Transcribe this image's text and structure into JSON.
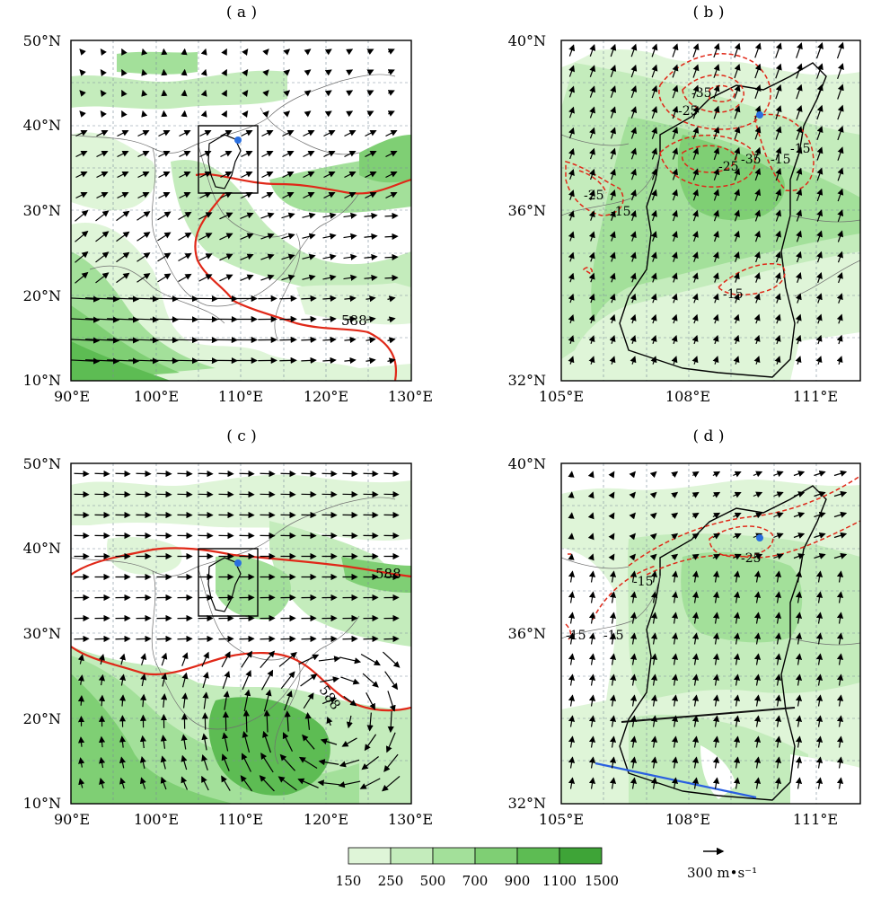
{
  "panels": [
    {
      "label": "( a )",
      "lat_labels": [
        "50°N",
        "40°N",
        "30°N",
        "20°N",
        "10°N"
      ],
      "lon_labels": [
        "90°E",
        "100°E",
        "110°E",
        "120°E",
        "130°E"
      ],
      "contour_label": "588"
    },
    {
      "label": "( b )",
      "lat_labels": [
        "40°N",
        "36°N",
        "32°N"
      ],
      "lon_labels": [
        "105°E",
        "108°E",
        "111°E"
      ],
      "contour_labels": [
        "-25",
        "-35",
        "-25",
        "-35",
        "-15",
        "-25",
        "-15",
        "-15",
        "-15"
      ]
    },
    {
      "label": "( c )",
      "lat_labels": [
        "50°N",
        "40°N",
        "30°N",
        "20°N",
        "10°N"
      ],
      "lon_labels": [
        "90°E",
        "100°E",
        "110°E",
        "120°E",
        "130°E"
      ],
      "contour_labels": [
        "588",
        "588"
      ]
    },
    {
      "label": "( d )",
      "lat_labels": [
        "40°N",
        "36°N",
        "32°N"
      ],
      "lon_labels": [
        "105°E",
        "108°E",
        "111°E"
      ],
      "contour_labels": [
        "-15",
        "-25",
        "-15",
        "-15"
      ]
    }
  ],
  "legend": {
    "ticks": [
      "150",
      "250",
      "500",
      "700",
      "900",
      "1100",
      "1500"
    ],
    "colors": [
      "#dff5d8",
      "#c4ecbc",
      "#a3e09a",
      "#7fcf74",
      "#5dbc53",
      "#3ea437"
    ]
  },
  "reference_vector": {
    "label": "300 m•s⁻¹"
  },
  "colors": {
    "geopotential_contour": "#e02818",
    "divergence_contour": "#e02818",
    "station_marker": "#2a6fe0",
    "section_line_black": "#111111",
    "section_line_blue": "#2a5fe0"
  }
}
